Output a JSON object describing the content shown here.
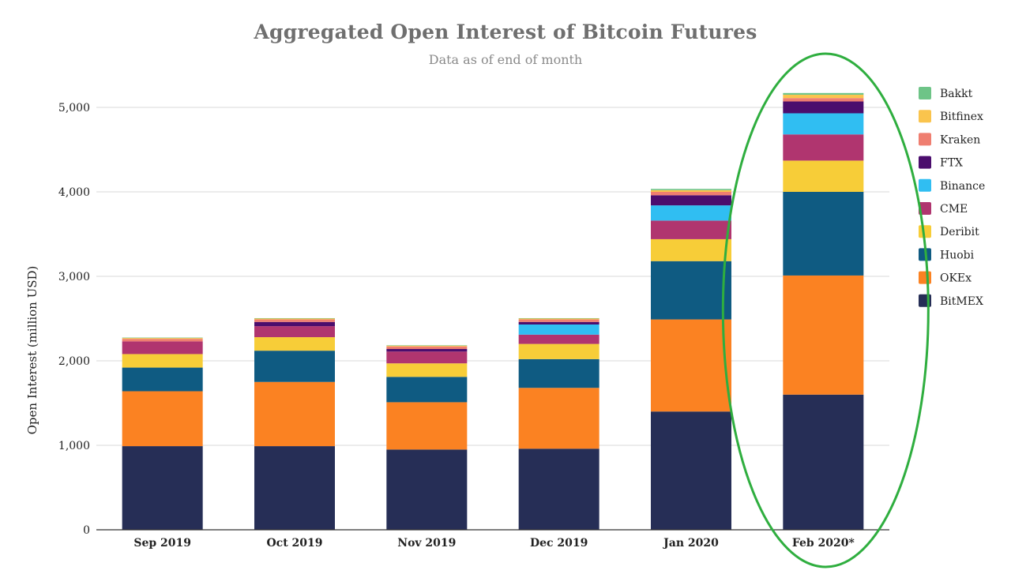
{
  "chart_data": {
    "type": "bar",
    "stacked": true,
    "title": "Aggregated Open Interest of Bitcoin Futures",
    "subtitle": "Data as of end of month",
    "xlabel": "",
    "ylabel": "Open Interest (million USD)",
    "ylim": [
      0,
      5200
    ],
    "yticks": [
      0,
      1000,
      2000,
      3000,
      4000,
      5000
    ],
    "ytick_labels": [
      "0",
      "1,000",
      "2,000",
      "3,000",
      "4,000",
      "5,000"
    ],
    "grid": true,
    "legend_position": "right",
    "categories": [
      "Sep 2019",
      "Oct 2019",
      "Nov 2019",
      "Dec 2019",
      "Jan 2020",
      "Feb 2020*"
    ],
    "series": [
      {
        "name": "BitMEX",
        "color": "#262e56",
        "values": [
          990,
          990,
          950,
          960,
          1400,
          1600
        ]
      },
      {
        "name": "OKEx",
        "color": "#fb8222",
        "values": [
          650,
          760,
          560,
          720,
          1090,
          1410
        ]
      },
      {
        "name": "Huobi",
        "color": "#0f5b82",
        "values": [
          280,
          370,
          300,
          340,
          690,
          990
        ]
      },
      {
        "name": "Deribit",
        "color": "#f7cd38",
        "values": [
          160,
          160,
          160,
          180,
          260,
          370
        ]
      },
      {
        "name": "CME",
        "color": "#b0356f",
        "values": [
          150,
          130,
          140,
          110,
          220,
          310
        ]
      },
      {
        "name": "Binance",
        "color": "#30bef2",
        "values": [
          0,
          0,
          0,
          120,
          180,
          250
        ]
      },
      {
        "name": "FTX",
        "color": "#4b0d6d",
        "values": [
          0,
          50,
          30,
          30,
          120,
          140
        ]
      },
      {
        "name": "Kraken",
        "color": "#ef7e70",
        "values": [
          30,
          30,
          30,
          30,
          40,
          40
        ]
      },
      {
        "name": "Bitfinex",
        "color": "#fac44d",
        "values": [
          10,
          10,
          10,
          10,
          20,
          40
        ]
      },
      {
        "name": "Bakkt",
        "color": "#6ec487",
        "values": [
          5,
          5,
          5,
          5,
          15,
          20
        ]
      }
    ],
    "legend_order": [
      "Bakkt",
      "Bitfinex",
      "Kraken",
      "FTX",
      "Binance",
      "CME",
      "Deribit",
      "Huobi",
      "OKEx",
      "BitMEX"
    ],
    "annotation": {
      "type": "ellipse",
      "target": "Feb 2020*",
      "color": "#2fae3f"
    }
  }
}
